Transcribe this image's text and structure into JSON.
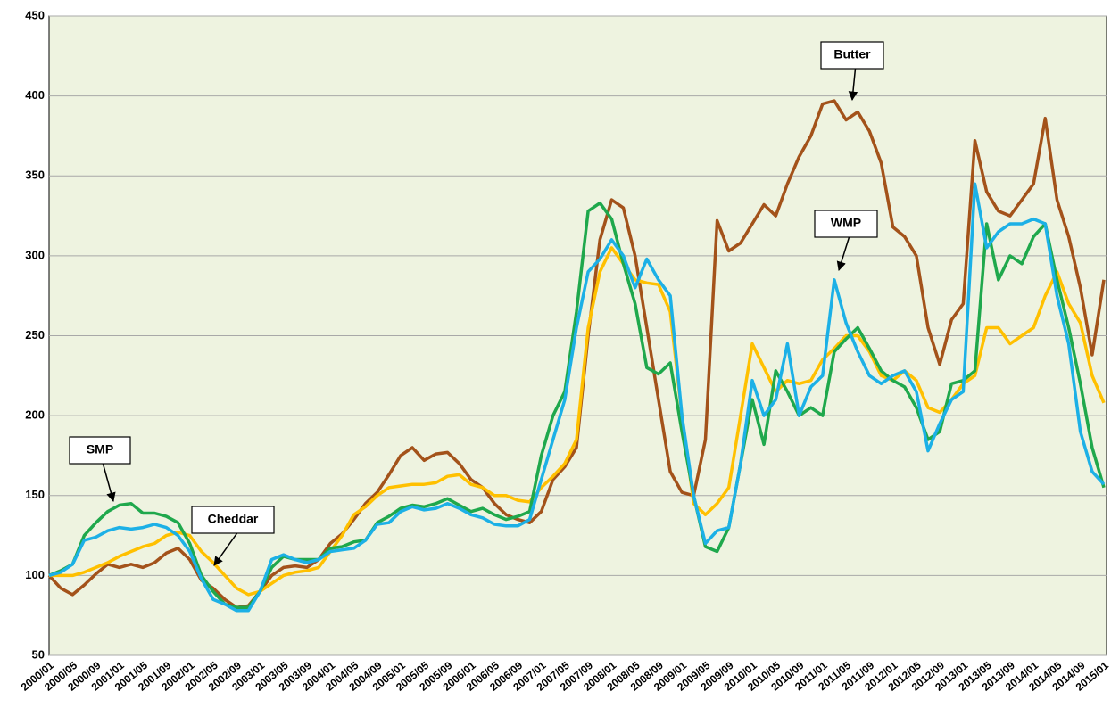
{
  "chart_data": {
    "type": "line",
    "categories": [
      "2000/01",
      null,
      "2000/05",
      null,
      "2000/09",
      null,
      "2001/01",
      null,
      "2001/05",
      null,
      "2001/09",
      null,
      "2002/01",
      null,
      "2002/05",
      null,
      "2002/09",
      null,
      "2003/01",
      null,
      "2003/05",
      null,
      "2003/09",
      null,
      "2004/01",
      null,
      "2004/05",
      null,
      "2004/09",
      null,
      "2005/01",
      null,
      "2005/05",
      null,
      "2005/09",
      null,
      "2006/01",
      null,
      "2006/05",
      null,
      "2006/09",
      null,
      "2007/01",
      null,
      "2007/05",
      null,
      "2007/09",
      null,
      "2008/01",
      null,
      "2008/05",
      null,
      "2008/09",
      null,
      "2009/01",
      null,
      "2009/05",
      null,
      "2009/09",
      null,
      "2010/01",
      null,
      "2010/05",
      null,
      "2010/09",
      null,
      "2011/01",
      null,
      "2011/05",
      null,
      "2011/09",
      null,
      "2012/01",
      null,
      "2012/05",
      null,
      "2012/09",
      null,
      "2013/01",
      null,
      "2013/05",
      null,
      "2013/09",
      null,
      "2014/01",
      null,
      "2014/05",
      null,
      "2014/09",
      null,
      "2015/01"
    ],
    "series": [
      {
        "name": "Butter",
        "color": "#a3521a",
        "values": [
          100,
          92,
          88,
          94,
          101,
          107,
          105,
          107,
          105,
          108,
          114,
          117,
          110,
          97,
          92,
          85,
          80,
          81,
          90,
          100,
          105,
          106,
          105,
          110,
          120,
          126,
          135,
          145,
          152,
          163,
          175,
          180,
          172,
          176,
          177,
          170,
          160,
          155,
          145,
          138,
          135,
          133,
          140,
          160,
          168,
          180,
          250,
          310,
          335,
          330,
          300,
          255,
          210,
          165,
          152,
          150,
          185,
          322,
          303,
          308,
          320,
          332,
          325,
          345,
          362,
          375,
          395,
          397,
          385,
          390,
          378,
          358,
          318,
          312,
          300,
          255,
          232,
          260,
          270,
          372,
          340,
          328,
          325,
          335,
          345,
          386,
          335,
          312,
          280,
          238,
          285
        ]
      },
      {
        "name": "Cheddar",
        "color": "#ffc000",
        "values": [
          100,
          100,
          100,
          102,
          105,
          108,
          112,
          115,
          118,
          120,
          125,
          127,
          125,
          115,
          108,
          100,
          92,
          88,
          90,
          95,
          100,
          102,
          103,
          105,
          115,
          125,
          138,
          143,
          150,
          155,
          156,
          157,
          157,
          158,
          162,
          163,
          157,
          155,
          150,
          150,
          147,
          146,
          155,
          162,
          170,
          185,
          255,
          290,
          305,
          295,
          285,
          283,
          282,
          265,
          200,
          145,
          138,
          145,
          155,
          200,
          245,
          230,
          215,
          222,
          220,
          222,
          235,
          242,
          250,
          250,
          240,
          225,
          222,
          228,
          222,
          205,
          202,
          210,
          220,
          225,
          255,
          255,
          245,
          250,
          255,
          275,
          290,
          270,
          258,
          225,
          208
        ]
      },
      {
        "name": "SMP",
        "color": "#1fa84c",
        "values": [
          100,
          103,
          107,
          125,
          133,
          140,
          144,
          145,
          139,
          139,
          137,
          133,
          120,
          100,
          90,
          82,
          80,
          80,
          90,
          105,
          112,
          110,
          110,
          110,
          117,
          118,
          121,
          122,
          133,
          137,
          142,
          144,
          143,
          145,
          148,
          144,
          140,
          142,
          138,
          135,
          137,
          140,
          175,
          200,
          215,
          265,
          328,
          333,
          323,
          295,
          270,
          230,
          226,
          233,
          190,
          150,
          118,
          115,
          130,
          170,
          210,
          182,
          228,
          215,
          200,
          205,
          200,
          240,
          248,
          255,
          242,
          228,
          222,
          218,
          205,
          185,
          190,
          220,
          222,
          228,
          320,
          285,
          300,
          295,
          312,
          320,
          285,
          255,
          220,
          180,
          155
        ]
      },
      {
        "name": "WMP",
        "color": "#1cb0e6",
        "values": [
          100,
          102,
          107,
          122,
          124,
          128,
          130,
          129,
          130,
          132,
          130,
          125,
          115,
          98,
          85,
          82,
          78,
          78,
          90,
          110,
          113,
          110,
          108,
          110,
          115,
          116,
          117,
          122,
          132,
          133,
          140,
          143,
          141,
          142,
          145,
          142,
          138,
          136,
          132,
          131,
          131,
          135,
          160,
          185,
          210,
          255,
          290,
          298,
          310,
          300,
          280,
          298,
          285,
          275,
          200,
          150,
          120,
          128,
          130,
          170,
          222,
          200,
          210,
          245,
          200,
          218,
          225,
          285,
          258,
          240,
          225,
          220,
          225,
          228,
          215,
          178,
          195,
          210,
          215,
          345,
          305,
          315,
          320,
          320,
          323,
          320,
          275,
          245,
          190,
          165,
          157
        ]
      }
    ],
    "ylim": [
      50,
      450
    ],
    "yticks": [
      50,
      100,
      150,
      200,
      250,
      300,
      350,
      400,
      450
    ],
    "grid": true
  }
}
